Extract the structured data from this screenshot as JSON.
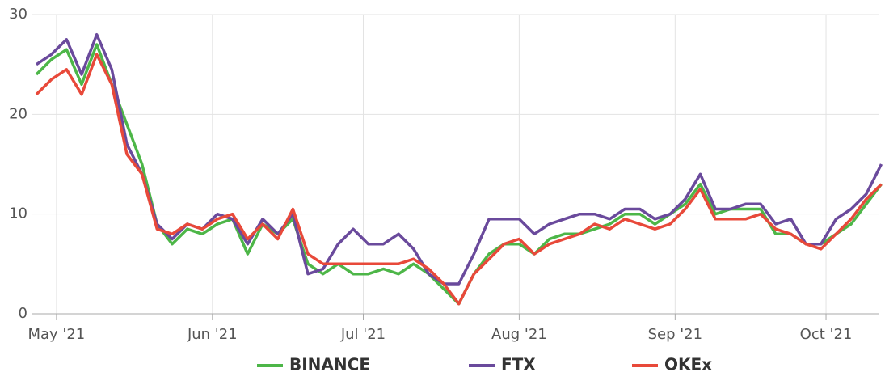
{
  "chart_data": {
    "type": "line",
    "x": [
      -4,
      -1,
      2,
      5,
      8,
      11,
      14,
      17,
      20,
      23,
      26,
      29,
      32,
      35,
      38,
      41,
      44,
      47,
      50,
      53,
      56,
      59,
      62,
      65,
      68,
      71,
      74,
      77,
      80,
      83,
      86,
      89,
      92,
      95,
      98,
      101,
      104,
      107,
      110,
      113,
      116,
      119,
      122,
      125,
      128,
      131,
      134,
      137,
      140,
      143,
      146,
      149,
      152,
      155,
      158,
      161,
      164
    ],
    "xlim": [
      -4.8,
      163.6
    ],
    "xticks": [
      {
        "value": 0,
        "label": "May '21"
      },
      {
        "value": 31,
        "label": "Jun '21"
      },
      {
        "value": 61,
        "label": "Jul '21"
      },
      {
        "value": 92,
        "label": "Aug '21"
      },
      {
        "value": 123,
        "label": "Sep '21"
      },
      {
        "value": 153,
        "label": "Oct '21"
      }
    ],
    "ylim": [
      0,
      30
    ],
    "yticks": [
      0,
      10,
      20,
      30
    ],
    "grid": true,
    "legend": "bottom",
    "series": [
      {
        "name": "BINANCE",
        "color": "#4db648",
        "values": [
          24,
          25.5,
          26.5,
          23,
          27,
          23,
          19,
          15,
          9,
          7,
          8.5,
          8,
          9,
          9.5,
          6,
          9,
          8,
          9.5,
          5,
          4,
          5,
          4,
          4,
          4.5,
          4,
          5,
          4,
          2.5,
          1,
          4,
          6,
          7,
          7,
          6,
          7.5,
          8,
          8,
          8.5,
          9,
          10,
          10,
          9,
          10,
          11,
          13,
          10,
          10.5,
          10.5,
          10.5,
          8,
          8,
          7,
          7,
          8,
          9,
          11,
          13
        ]
      },
      {
        "name": "FTX",
        "color": "#6a4a9c",
        "values": [
          25,
          26,
          27.5,
          24,
          28,
          24.5,
          17,
          14,
          9,
          7.5,
          9,
          8.5,
          10,
          9.5,
          7,
          9.5,
          8,
          10,
          4,
          4.5,
          7,
          8.5,
          7,
          7,
          8,
          6.5,
          4,
          3,
          3,
          6,
          9.5,
          9.5,
          9.5,
          8,
          9,
          9.5,
          10,
          10,
          9.5,
          10.5,
          10.5,
          9.5,
          10,
          11.5,
          14,
          10.5,
          10.5,
          11,
          11,
          9,
          9.5,
          7,
          7,
          9.5,
          10.5,
          12,
          15
        ]
      },
      {
        "name": "OKEx",
        "color": "#e8493a",
        "values": [
          22,
          23.5,
          24.5,
          22,
          26,
          23,
          16,
          14,
          8.5,
          8,
          9,
          8.5,
          9.5,
          10,
          7.5,
          9,
          7.5,
          10.5,
          6,
          5,
          5,
          5,
          5,
          5,
          5,
          5.5,
          4.5,
          3,
          1,
          4,
          5.5,
          7,
          7.5,
          6,
          7,
          7.5,
          8,
          9,
          8.5,
          9.5,
          9,
          8.5,
          9,
          10.5,
          12.5,
          9.5,
          9.5,
          9.5,
          10,
          8.5,
          8,
          7,
          6.5,
          8,
          9.5,
          11.5,
          13
        ]
      }
    ]
  }
}
